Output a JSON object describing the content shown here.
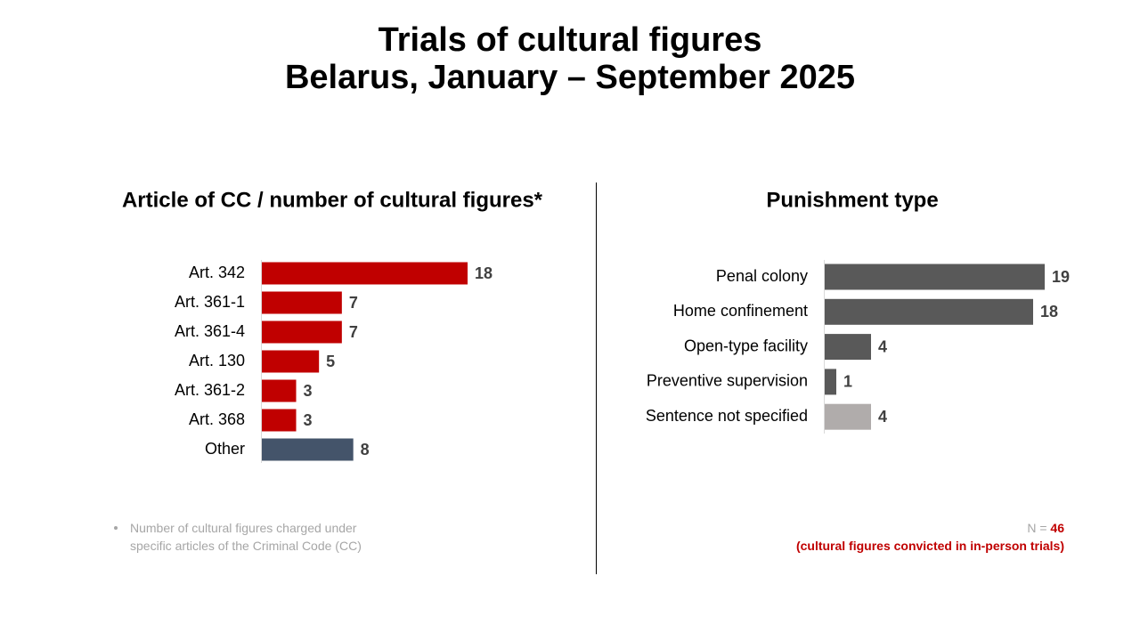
{
  "title": "Trials of cultural figures",
  "subtitle": "Belarus, January – September 2025",
  "chart_data": [
    {
      "type": "bar",
      "orientation": "horizontal",
      "title": "Article of CC / number of cultural figures*",
      "categories": [
        "Art. 342",
        "Art. 361-1",
        "Art. 361-4",
        "Art. 130",
        "Art. 361-2",
        "Art. 368",
        "Other"
      ],
      "values": [
        18,
        7,
        7,
        5,
        3,
        3,
        8
      ],
      "colors": [
        "#c00000",
        "#c00000",
        "#c00000",
        "#c00000",
        "#c00000",
        "#c00000",
        "#44546a"
      ],
      "xlim": [
        0,
        18
      ]
    },
    {
      "type": "bar",
      "orientation": "horizontal",
      "title": "Punishment type",
      "categories": [
        "Penal colony",
        "Home confinement",
        "Open-type facility",
        "Preventive supervision",
        "Sentence not specified"
      ],
      "values": [
        19,
        18,
        4,
        1,
        4
      ],
      "colors": [
        "#595959",
        "#595959",
        "#595959",
        "#595959",
        "#b0acab"
      ],
      "xlim": [
        0,
        19
      ]
    }
  ],
  "footnote": "Number of cultural figures charged under specific articles of the Criminal Code (CC)",
  "n_label": "N =",
  "n": 46,
  "n_note": "(cultural figures convicted in in-person trials)"
}
